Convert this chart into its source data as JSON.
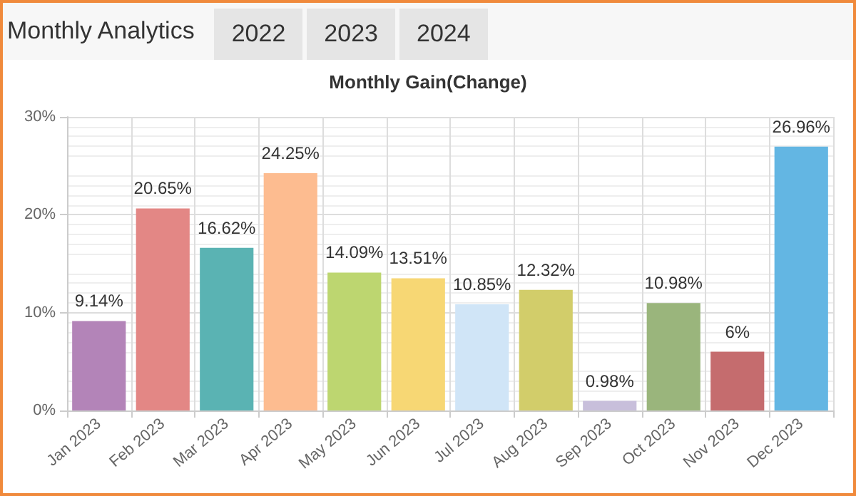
{
  "chart_data": {
    "type": "bar",
    "title": "Monthly Analytics",
    "subtitle": "Monthly Gain(Change)",
    "annotations": [
      "2022",
      "2023",
      "2024"
    ],
    "categories": [
      "Jan 2023",
      "Feb 2023",
      "Mar 2023",
      "Apr 2023",
      "May 2023",
      "Jun 2023",
      "Jul 2023",
      "Aug 2023",
      "Sep 2023",
      "Oct 2023",
      "Nov 2023",
      "Dec 2023"
    ],
    "values": [
      9.14,
      20.65,
      16.62,
      24.25,
      14.09,
      13.51,
      10.85,
      12.32,
      0.98,
      10.98,
      6,
      26.96
    ],
    "colors": [
      "#b384b8",
      "#e38785",
      "#5ab3b3",
      "#fdbc90",
      "#bdd670",
      "#f7d774",
      "#d0e5f7",
      "#d2cd6a",
      "#c8bfdb",
      "#9ab57c",
      "#c56c6e",
      "#63b6e3"
    ],
    "value_labels": [
      "9.14%",
      "20.65%",
      "16.62%",
      "24.25%",
      "14.09%",
      "13.51%",
      "10.85%",
      "12.32%",
      "0.98%",
      "10.98%",
      "6%",
      "26.96%"
    ],
    "ylim": [
      0,
      30
    ],
    "yticks": [
      {
        "value": 0,
        "label": "0%"
      },
      {
        "value": 10,
        "label": "10%"
      },
      {
        "value": 20,
        "label": "20%"
      },
      {
        "value": 30,
        "label": "30%"
      }
    ],
    "grid": true
  }
}
